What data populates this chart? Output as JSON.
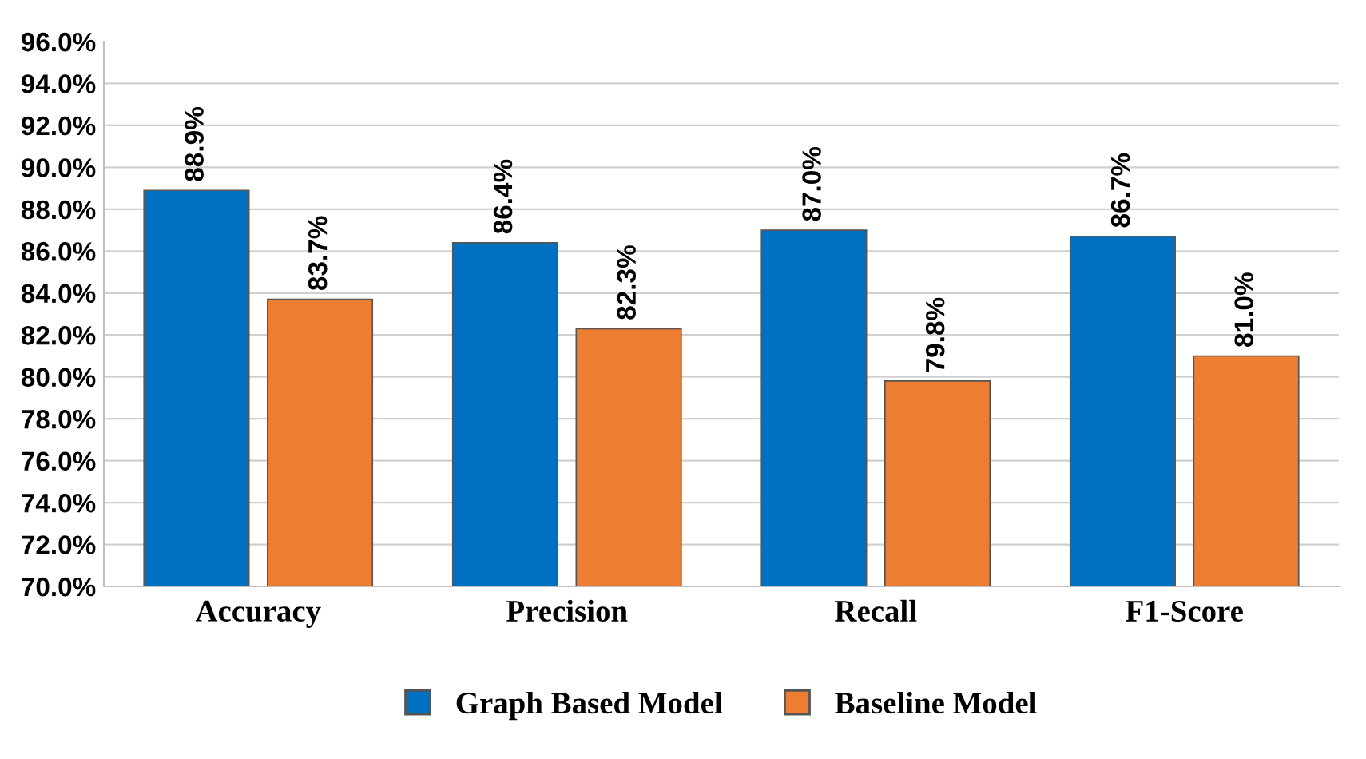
{
  "chart_data": {
    "type": "bar",
    "categories": [
      "Accuracy",
      "Precision",
      "Recall",
      "F1-Score"
    ],
    "series": [
      {
        "name": "Graph Based Model",
        "color": "#0070c0",
        "values": [
          88.9,
          86.4,
          87.0,
          86.7
        ],
        "value_labels": [
          "88.9%",
          "86.4%",
          "87.0%",
          "86.7%"
        ]
      },
      {
        "name": "Baseline Model",
        "color": "#ed7d31",
        "values": [
          83.7,
          82.3,
          79.8,
          81.0
        ],
        "value_labels": [
          "83.7%",
          "82.3%",
          "79.8%",
          "81.0%"
        ]
      }
    ],
    "ylim": [
      70,
      96
    ],
    "yticks": [
      {
        "value": 70,
        "label": "70.0%"
      },
      {
        "value": 72,
        "label": "72.0%"
      },
      {
        "value": 74,
        "label": "74.0%"
      },
      {
        "value": 76,
        "label": "76.0%"
      },
      {
        "value": 78,
        "label": "78.0%"
      },
      {
        "value": 80,
        "label": "80.0%"
      },
      {
        "value": 82,
        "label": "82.0%"
      },
      {
        "value": 84,
        "label": "84.0%"
      },
      {
        "value": 86,
        "label": "86.0%"
      },
      {
        "value": 88,
        "label": "88.0%"
      },
      {
        "value": 90,
        "label": "90.0%"
      },
      {
        "value": 92,
        "label": "92.0%"
      },
      {
        "value": 94,
        "label": "94.0%"
      },
      {
        "value": 96,
        "label": "96.0%"
      }
    ],
    "grid": "y",
    "legend": "bottom"
  }
}
